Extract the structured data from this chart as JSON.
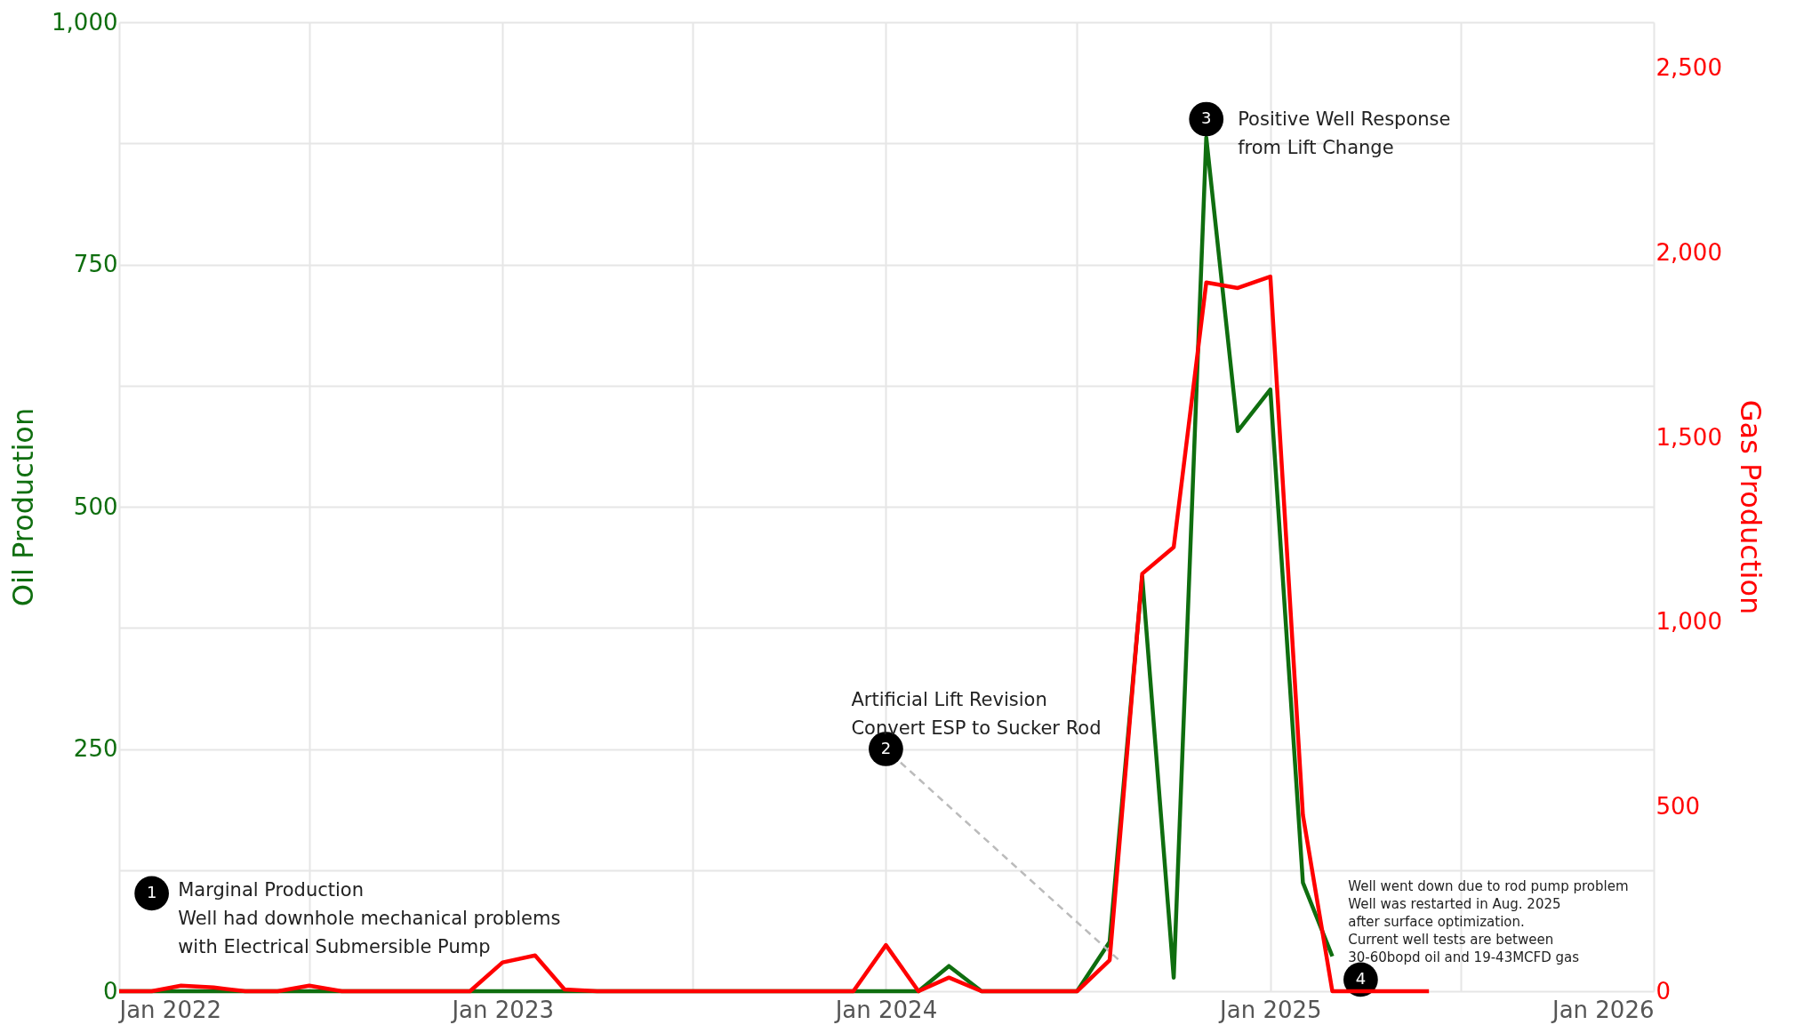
{
  "chart_data": {
    "type": "line",
    "ylabel": "Oil Production",
    "y2label": "Gas Production",
    "x": [
      "2022-01",
      "2022-02",
      "2022-03",
      "2022-04",
      "2022-05",
      "2022-06",
      "2022-07",
      "2022-08",
      "2022-09",
      "2022-10",
      "2022-11",
      "2022-12",
      "2023-01",
      "2023-02",
      "2023-03",
      "2023-04",
      "2023-05",
      "2023-06",
      "2023-07",
      "2023-08",
      "2023-09",
      "2023-10",
      "2023-11",
      "2023-12",
      "2024-01",
      "2024-02",
      "2024-03",
      "2024-04",
      "2024-05",
      "2024-06",
      "2024-07",
      "2024-08",
      "2024-09",
      "2024-10",
      "2024-11",
      "2024-12",
      "2025-01",
      "2025-02",
      "2025-03",
      "2025-04",
      "2025-05",
      "2025-06"
    ],
    "series": [
      {
        "color": "#0f6e0f",
        "values": [
          0,
          0,
          0,
          0,
          0,
          0,
          0,
          0,
          0,
          0,
          0,
          0,
          0,
          0,
          0,
          0,
          0,
          0,
          0,
          0,
          0,
          0,
          0,
          0,
          0,
          0,
          26,
          0,
          0,
          0,
          0,
          51,
          428,
          14,
          881,
          578,
          621,
          112,
          36,
          null,
          null,
          null
        ]
      },
      {
        "color": "#ff0000",
        "axis": "y2",
        "values": [
          0,
          0,
          15,
          10,
          0,
          0,
          15,
          0,
          0,
          0,
          0,
          0,
          78,
          97,
          5,
          0,
          0,
          0,
          0,
          0,
          0,
          0,
          0,
          0,
          125,
          0,
          37,
          0,
          0,
          0,
          0,
          84,
          1131,
          1203,
          1920,
          1905,
          1936,
          477,
          0,
          0,
          0,
          0
        ]
      }
    ],
    "xlim": [
      "2022-01",
      "2026-01"
    ],
    "xticks": [
      {
        "value": "2022-01",
        "label": "Jan 2022"
      },
      {
        "value": "2022-07",
        "label": null
      },
      {
        "value": "2023-01",
        "label": "Jan 2023"
      },
      {
        "value": "2023-07",
        "label": null
      },
      {
        "value": "2024-01",
        "label": "Jan 2024"
      },
      {
        "value": "2024-07",
        "label": null
      },
      {
        "value": "2025-01",
        "label": "Jan 2025"
      },
      {
        "value": "2025-07",
        "label": null
      },
      {
        "value": "2026-01",
        "label": "Jan 2026"
      }
    ],
    "ylim": [
      0,
      1000
    ],
    "yticks": [
      {
        "value": 0,
        "label": "0"
      },
      {
        "value": 125,
        "label": null
      },
      {
        "value": 250,
        "label": "250"
      },
      {
        "value": 375,
        "label": null
      },
      {
        "value": 500,
        "label": "500"
      },
      {
        "value": 625,
        "label": null
      },
      {
        "value": 750,
        "label": "750"
      },
      {
        "value": 875,
        "label": null
      },
      {
        "value": 1000,
        "label": "1,000"
      }
    ],
    "y2lim": [
      0,
      2625
    ],
    "y2ticks": [
      {
        "value": 0,
        "label": "0"
      },
      {
        "value": 500,
        "label": "500"
      },
      {
        "value": 1000,
        "label": "1,000"
      },
      {
        "value": 1500,
        "label": "1,500"
      },
      {
        "value": 2000,
        "label": "2,000"
      },
      {
        "value": 2500,
        "label": "2,500"
      }
    ],
    "annotations": [
      "1",
      "Marginal Production\nWell had downhole mechanical problems\nwith Electrical Submersible Pump",
      "2",
      "Artificial Lift Revision\nConvert ESP to Sucker Rod",
      "3",
      "Positive Well Response\nfrom Lift Change",
      "4",
      "Well went down due to rod pump problem\nWell was restarted in Aug. 2025\nafter surface optimization.\nCurrent well tests are between\n30-60bopd oil and 19-43MCFD gas"
    ],
    "grid": true,
    "legend": false,
    "marker": "none",
    "line_style": "solid"
  }
}
